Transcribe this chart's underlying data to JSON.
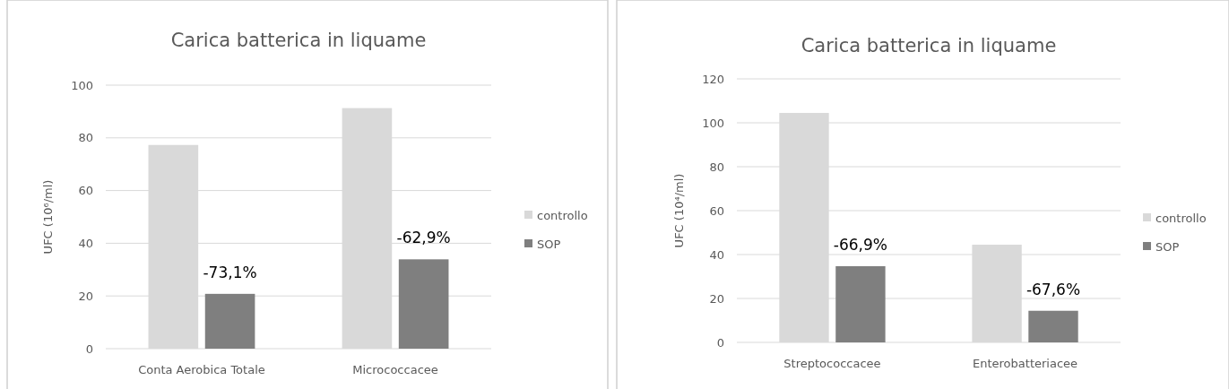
{
  "chart_data": [
    {
      "type": "bar",
      "title": "Carica batterica in liquame",
      "ylabel": "UFC (10⁶/ml)",
      "categories": [
        "Conta Aerobica Totale",
        "Micrococcacee"
      ],
      "series": [
        {
          "name": "controllo",
          "color": "#d9d9d9",
          "values": [
            77.3,
            91.3
          ]
        },
        {
          "name": "SOP",
          "color": "#7f7f7f",
          "values": [
            20.8,
            33.9
          ]
        }
      ],
      "ylim": [
        0,
        100
      ],
      "yticks": [
        0,
        20,
        40,
        60,
        80,
        100
      ],
      "grid": "y",
      "legend": "right",
      "annotations": [
        {
          "text": "-73,1%",
          "x": "Conta Aerobica Totale",
          "y": 20.8
        },
        {
          "text": "-62,9%",
          "x": "Micrococcacee",
          "y": 33.9
        }
      ]
    },
    {
      "type": "bar",
      "title": "Carica batterica in liquame",
      "ylabel": "UFC (10⁴/ml)",
      "categories": [
        "Streptococcacee",
        "Enterobatteriacee"
      ],
      "series": [
        {
          "name": "controllo",
          "color": "#d9d9d9",
          "values": [
            104.5,
            44.5
          ]
        },
        {
          "name": "SOP",
          "color": "#7f7f7f",
          "values": [
            34.7,
            14.4
          ]
        }
      ],
      "ylim": [
        0,
        120
      ],
      "yticks": [
        0,
        20,
        40,
        60,
        80,
        100,
        120
      ],
      "grid": "y",
      "legend": "right",
      "annotations": [
        {
          "text": "-66,9%",
          "x": "Streptococcacee",
          "y": 34.7
        },
        {
          "text": "-67,6%",
          "x": "Enterobatteriacee",
          "y": 14.4
        }
      ]
    }
  ]
}
